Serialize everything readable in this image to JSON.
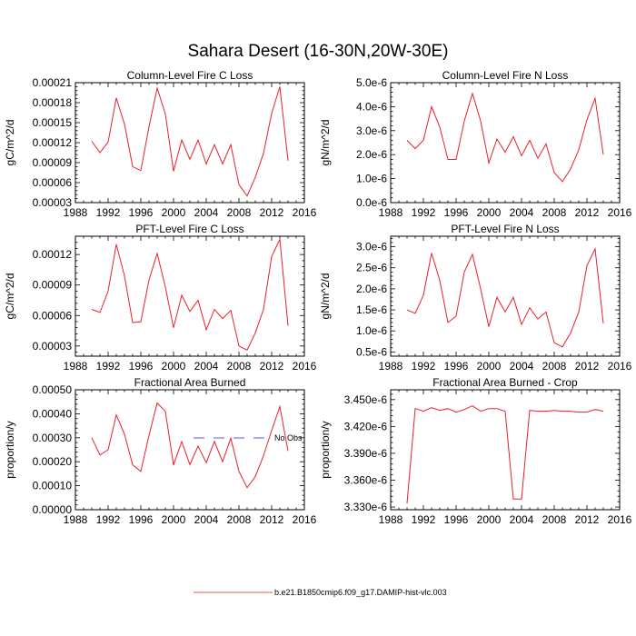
{
  "figure": {
    "title": "Sahara Desert (16-30N,20W-30E)",
    "line_color": "#e8202a",
    "obs_color": "#1f1fdc"
  },
  "legend": {
    "obs_label": "No Obs",
    "model_label": "b.e21.B1850cmip6.f09_g17.DAMIP-hist-vlc.003"
  },
  "chart_data": [
    {
      "type": "line",
      "title": "Column-Level Fire C Loss",
      "xlabel": "",
      "ylabel": "gC/m^2/d",
      "xlim": [
        1988,
        2016
      ],
      "ylim": [
        3e-05,
        0.00021
      ],
      "xticks": [
        1988,
        1992,
        1996,
        2000,
        2004,
        2008,
        2012,
        2016
      ],
      "xtick_labels": [
        "1988",
        "1992",
        "1996",
        "2000",
        "2004",
        "2008",
        "2012",
        "2016"
      ],
      "yticks": [
        3e-05,
        6e-05,
        9e-05,
        0.00012,
        0.00015,
        0.00018,
        0.00021
      ],
      "ytick_labels": [
        "0.00003",
        "0.00006",
        "0.00009",
        "0.00012",
        "0.00015",
        "0.00018",
        "0.00021"
      ],
      "x": [
        1990,
        1991,
        1992,
        1993,
        1994,
        1995,
        1996,
        1997,
        1998,
        1999,
        2000,
        2001,
        2002,
        2003,
        2004,
        2005,
        2006,
        2007,
        2008,
        2009,
        2010,
        2011,
        2012,
        2013,
        2014
      ],
      "series": [
        {
          "values": [
            0.000122,
            0.000105,
            0.000121,
            0.000187,
            0.000148,
            8.4e-05,
            7.8e-05,
            0.000144,
            0.000202,
            0.000163,
            7.7e-05,
            0.000124,
            9.5e-05,
            0.000124,
            8.8e-05,
            0.000117,
            8.8e-05,
            0.000117,
            5.7e-05,
            4e-05,
            6.8e-05,
            0.000104,
            0.000164,
            0.000204,
            9.3e-05
          ]
        }
      ]
    },
    {
      "type": "line",
      "title": "Column-Level Fire N Loss",
      "xlabel": "",
      "ylabel": "gN/m^2/d",
      "xlim": [
        1988,
        2016
      ],
      "ylim": [
        0,
        5e-06
      ],
      "xticks": [
        1988,
        1992,
        1996,
        2000,
        2004,
        2008,
        2012,
        2016
      ],
      "xtick_labels": [
        "1988",
        "1992",
        "1996",
        "2000",
        "2004",
        "2008",
        "2012",
        "2016"
      ],
      "yticks": [
        0,
        1e-06,
        2e-06,
        3e-06,
        4e-06,
        5e-06
      ],
      "ytick_labels": [
        "0.0e-6",
        "1.0e-6",
        "2.0e-6",
        "3.0e-6",
        "4.0e-6",
        "5.0e-6"
      ],
      "x": [
        1990,
        1991,
        1992,
        1993,
        1994,
        1995,
        1996,
        1997,
        1998,
        1999,
        2000,
        2001,
        2002,
        2003,
        2004,
        2005,
        2006,
        2007,
        2008,
        2009,
        2010,
        2011,
        2012,
        2013,
        2014
      ],
      "series": [
        {
          "values": [
            2.6e-06,
            2.25e-06,
            2.6e-06,
            4e-06,
            3.15e-06,
            1.8e-06,
            1.8e-06,
            3.4e-06,
            4.55e-06,
            3.4e-06,
            1.65e-06,
            2.65e-06,
            2.1e-06,
            2.75e-06,
            1.95e-06,
            2.6e-06,
            1.85e-06,
            2.45e-06,
            1.25e-06,
            8.8e-07,
            1.4e-06,
            2.2e-06,
            3.45e-06,
            4.35e-06,
            2e-06
          ]
        }
      ]
    },
    {
      "type": "line",
      "title": "PFT-Level Fire C Loss",
      "xlabel": "",
      "ylabel": "gC/m^2/d",
      "xlim": [
        1988,
        2016
      ],
      "ylim": [
        2e-05,
        0.000138
      ],
      "xticks": [
        1988,
        1992,
        1996,
        2000,
        2004,
        2008,
        2012,
        2016
      ],
      "xtick_labels": [
        "1988",
        "1992",
        "1996",
        "2000",
        "2004",
        "2008",
        "2012",
        "2016"
      ],
      "yticks": [
        3e-05,
        6e-05,
        9e-05,
        0.00012
      ],
      "ytick_labels": [
        "0.00003",
        "0.00006",
        "0.00009",
        "0.00012"
      ],
      "x": [
        1990,
        1991,
        1992,
        1993,
        1994,
        1995,
        1996,
        1997,
        1998,
        1999,
        2000,
        2001,
        2002,
        2003,
        2004,
        2005,
        2006,
        2007,
        2008,
        2009,
        2010,
        2011,
        2012,
        2013,
        2014
      ],
      "series": [
        {
          "values": [
            6.6e-05,
            6.3e-05,
            8.4e-05,
            0.00013,
            9.9e-05,
            5.3e-05,
            5.4e-05,
            9.5e-05,
            0.000121,
            8.8e-05,
            4.8e-05,
            8e-05,
            6.4e-05,
            7.5e-05,
            4.6e-05,
            6.6e-05,
            5.7e-05,
            6.5e-05,
            3e-05,
            2.6e-05,
            4.3e-05,
            6.6e-05,
            0.000118,
            0.000135,
            5e-05
          ]
        }
      ]
    },
    {
      "type": "line",
      "title": "PFT-Level Fire N Loss",
      "xlabel": "",
      "ylabel": "gN/m^2/d",
      "xlim": [
        1988,
        2016
      ],
      "ylim": [
        4e-07,
        3.25e-06
      ],
      "xticks": [
        1988,
        1992,
        1996,
        2000,
        2004,
        2008,
        2012,
        2016
      ],
      "xtick_labels": [
        "1988",
        "1992",
        "1996",
        "2000",
        "2004",
        "2008",
        "2012",
        "2016"
      ],
      "yticks": [
        5e-07,
        1e-06,
        1.5e-06,
        2e-06,
        2.5e-06,
        3e-06
      ],
      "ytick_labels": [
        "0.5e-6",
        "1.0e-6",
        "1.5e-6",
        "2.0e-6",
        "2.5e-6",
        "3.0e-6"
      ],
      "x": [
        1990,
        1991,
        1992,
        1993,
        1994,
        1995,
        1996,
        1997,
        1998,
        1999,
        2000,
        2001,
        2002,
        2003,
        2004,
        2005,
        2006,
        2007,
        2008,
        2009,
        2010,
        2011,
        2012,
        2013,
        2014
      ],
      "series": [
        {
          "values": [
            1.5e-06,
            1.42e-06,
            1.85e-06,
            2.85e-06,
            2.2e-06,
            1.2e-06,
            1.35e-06,
            2.4e-06,
            2.82e-06,
            2e-06,
            1.1e-06,
            1.8e-06,
            1.45e-06,
            1.8e-06,
            1.15e-06,
            1.55e-06,
            1.28e-06,
            1.45e-06,
            7.2e-07,
            6.2e-07,
            9.5e-07,
            1.45e-06,
            2.55e-06,
            2.95e-06,
            1.18e-06
          ]
        }
      ]
    },
    {
      "type": "line",
      "title": "Fractional Area Burned",
      "xlabel": "",
      "ylabel": "proportion/y",
      "xlim": [
        1988,
        2016
      ],
      "ylim": [
        0,
        0.0005
      ],
      "xticks": [
        1988,
        1992,
        1996,
        2000,
        2004,
        2008,
        2012,
        2016
      ],
      "xtick_labels": [
        "1988",
        "1992",
        "1996",
        "2000",
        "2004",
        "2008",
        "2012",
        "2016"
      ],
      "yticks": [
        0,
        0.0001,
        0.0002,
        0.0003,
        0.0004,
        0.0005
      ],
      "ytick_labels": [
        "0.00000",
        "0.00010",
        "0.00020",
        "0.00030",
        "0.00040",
        "0.00050"
      ],
      "x": [
        1990,
        1991,
        1992,
        1993,
        1994,
        1995,
        1996,
        1997,
        1998,
        1999,
        2000,
        2001,
        2002,
        2003,
        2004,
        2005,
        2006,
        2007,
        2008,
        2009,
        2010,
        2011,
        2012,
        2013,
        2014
      ],
      "series": [
        {
          "values": [
            0.0003,
            0.000228,
            0.00025,
            0.000395,
            0.000315,
            0.000187,
            0.00016,
            0.00031,
            0.000445,
            0.00041,
            0.000186,
            0.000284,
            0.000188,
            0.000265,
            0.000196,
            0.000285,
            0.0002,
            0.000298,
            0.00016,
            9.2e-05,
            0.000138,
            0.000225,
            0.00033,
            0.00043,
            0.000245
          ]
        }
      ]
    },
    {
      "type": "line",
      "title": "Fractional Area Burned - Crop",
      "xlabel": "",
      "ylabel": "proportion/y",
      "xlim": [
        1988,
        2016
      ],
      "ylim": [
        3.327e-06,
        3.461e-06
      ],
      "xticks": [
        1988,
        1992,
        1996,
        2000,
        2004,
        2008,
        2012,
        2016
      ],
      "xtick_labels": [
        "1988",
        "1992",
        "1996",
        "2000",
        "2004",
        "2008",
        "2012",
        "2016"
      ],
      "yticks": [
        3.33e-06,
        3.36e-06,
        3.39e-06,
        3.42e-06,
        3.45e-06
      ],
      "ytick_labels": [
        "3.330e-6",
        "3.360e-6",
        "3.390e-6",
        "3.420e-6",
        "3.450e-6"
      ],
      "x": [
        1990,
        1991,
        1992,
        1993,
        1994,
        1995,
        1996,
        1997,
        1998,
        1999,
        2000,
        2001,
        2002,
        2003,
        2004,
        2005,
        2006,
        2007,
        2008,
        2009,
        2010,
        2011,
        2012,
        2013,
        2014
      ],
      "series": [
        {
          "values": [
            3.334e-06,
            3.44e-06,
            3.437e-06,
            3.441e-06,
            3.438e-06,
            3.44e-06,
            3.436e-06,
            3.439e-06,
            3.443e-06,
            3.437e-06,
            3.44e-06,
            3.44e-06,
            3.437e-06,
            3.339e-06,
            3.339e-06,
            3.438e-06,
            3.437e-06,
            3.437e-06,
            3.438e-06,
            3.437e-06,
            3.437e-06,
            3.436e-06,
            3.436e-06,
            3.439e-06,
            3.437e-06
          ]
        }
      ]
    }
  ]
}
